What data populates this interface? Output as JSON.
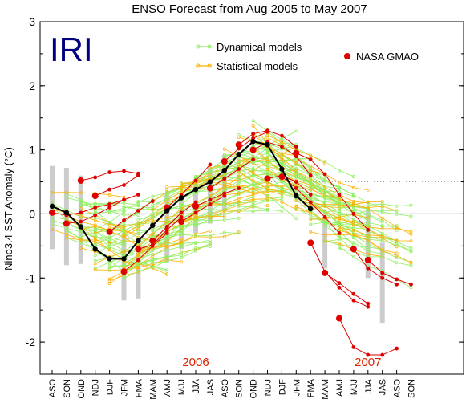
{
  "chart_data": {
    "type": "line",
    "title": "ENSO Forecast from Aug 2005 to May 2007",
    "logo": "IRI",
    "xlabel": "",
    "ylabel": "Nino3.4 SST Anomaly (°C)",
    "ylim": [
      -2.5,
      3
    ],
    "yticks": [
      -2,
      -1,
      0,
      1,
      2,
      3
    ],
    "categories": [
      "ASO",
      "SON",
      "OND",
      "NDJ",
      "DJF",
      "JFM",
      "FMA",
      "MAM",
      "AMJ",
      "MJJ",
      "JJA",
      "JAS",
      "ASO",
      "SON",
      "OND",
      "NDJ",
      "DJF",
      "JFM",
      "FMA",
      "MAM",
      "AMJ",
      "MJJ",
      "JJA",
      "JAS",
      "ASO",
      "SON"
    ],
    "year_labels": [
      {
        "text": "2006",
        "category": "JJA"
      },
      {
        "text": "2007",
        "category": "JJA"
      }
    ],
    "colors": {
      "dynamical": "#90ee60",
      "statistical": "#ffb000",
      "nasa": "#e00000",
      "observed": "#000000",
      "spread": "#cccccc",
      "year_label": "#dd2200",
      "logo": "#000080"
    },
    "legend": {
      "placement": "top",
      "items": [
        {
          "label": "Dynamical models",
          "color": "#90ee60"
        },
        {
          "label": "Statistical models",
          "color": "#ffb000"
        },
        {
          "label": "NASA GMAO",
          "color": "#e00000"
        }
      ]
    },
    "grid": false,
    "reference_lines": [
      {
        "y": 0,
        "style": "solid"
      },
      {
        "y": 0.5,
        "style": "dotted"
      },
      {
        "y": -0.5,
        "style": "dotted"
      }
    ],
    "observed": {
      "name": "Observed",
      "values": [
        0.12,
        0.02,
        -0.2,
        -0.55,
        -0.7,
        -0.7,
        -0.42,
        -0.18,
        0.05,
        0.25,
        0.38,
        0.5,
        0.68,
        0.93,
        1.13,
        1.08,
        0.7,
        0.28,
        0.08
      ]
    },
    "spread_bars": [
      {
        "x": 0,
        "low": -0.55,
        "high": 0.75
      },
      {
        "x": 1,
        "low": -0.8,
        "high": 0.72
      },
      {
        "x": 2,
        "low": -0.78,
        "high": 0.6
      },
      {
        "x": 5,
        "low": -1.35,
        "high": -0.3
      },
      {
        "x": 6,
        "low": -1.32,
        "high": -0.45
      },
      {
        "x": 8,
        "low": -0.75,
        "high": 0.32
      },
      {
        "x": 9,
        "low": -0.55,
        "high": 0.3
      },
      {
        "x": 10,
        "low": -0.3,
        "high": 0.55
      },
      {
        "x": 11,
        "low": -0.15,
        "high": 0.72
      },
      {
        "x": 12,
        "low": 0.05,
        "high": 0.92
      },
      {
        "x": 19,
        "low": -0.85,
        "high": -0.05
      },
      {
        "x": 22,
        "low": -1.0,
        "high": 0.05
      },
      {
        "x": 23,
        "low": -1.7,
        "high": -0.45
      }
    ],
    "nasa_forecasts": [
      {
        "start": 0,
        "values": [
          0.02,
          -0.02,
          0.02,
          0.1,
          0.15,
          0.22
        ]
      },
      {
        "start": 1,
        "values": [
          -0.15,
          -0.12,
          -0.02,
          0.1,
          0.22,
          0.3
        ]
      },
      {
        "start": 2,
        "values": [
          0.52,
          0.57,
          0.65,
          0.67,
          0.63
        ]
      },
      {
        "start": 3,
        "values": [
          0.28,
          0.38,
          0.45,
          0.6
        ]
      },
      {
        "start": 4,
        "values": [
          -0.28,
          -0.1,
          0.05,
          0.2
        ]
      },
      {
        "start": 5,
        "values": [
          -0.9,
          -0.72,
          -0.5,
          -0.3
        ]
      },
      {
        "start": 6,
        "values": [
          -0.55,
          -0.48,
          -0.25,
          -0.05
        ]
      },
      {
        "start": 7,
        "values": [
          -0.42,
          -0.2,
          0.02,
          0.18
        ]
      },
      {
        "start": 8,
        "values": [
          0.1,
          0.3,
          0.52,
          0.77
        ]
      },
      {
        "start": 9,
        "values": [
          -0.12,
          0.02,
          0.15,
          0.28
        ]
      },
      {
        "start": 10,
        "values": [
          0.12,
          0.22,
          0.32,
          0.4
        ]
      },
      {
        "start": 11,
        "values": [
          0.4,
          0.55,
          0.7,
          0.85
        ]
      },
      {
        "start": 12,
        "values": [
          0.82,
          1.02,
          1.18,
          1.28
        ]
      },
      {
        "start": 13,
        "values": [
          1.08,
          1.25,
          1.3,
          1.22,
          1.05
        ]
      },
      {
        "start": 14,
        "values": [
          1.0,
          1.12,
          1.05,
          0.9,
          0.6
        ]
      },
      {
        "start": 15,
        "values": [
          0.55,
          0.6,
          0.5,
          0.3
        ]
      },
      {
        "start": 16,
        "values": [
          0.58,
          0.4,
          0.18,
          -0.05,
          -0.3
        ]
      },
      {
        "start": 17,
        "values": [
          0.95,
          0.85,
          0.62,
          0.3,
          0.0,
          -0.25
        ]
      },
      {
        "start": 18,
        "values": [
          -0.45,
          -0.9,
          -1.15,
          -1.35,
          -1.45
        ]
      },
      {
        "start": 19,
        "values": [
          -0.92,
          -1.08,
          -1.25,
          -1.4
        ]
      },
      {
        "start": 20,
        "values": [
          -1.63,
          -2.08,
          -2.2,
          -2.2,
          -2.1
        ]
      },
      {
        "start": 21,
        "values": [
          -0.55,
          -0.85,
          -1.0,
          -1.1
        ]
      },
      {
        "start": 22,
        "values": [
          -0.72,
          -0.92,
          -1.02,
          -1.1
        ]
      }
    ]
  }
}
